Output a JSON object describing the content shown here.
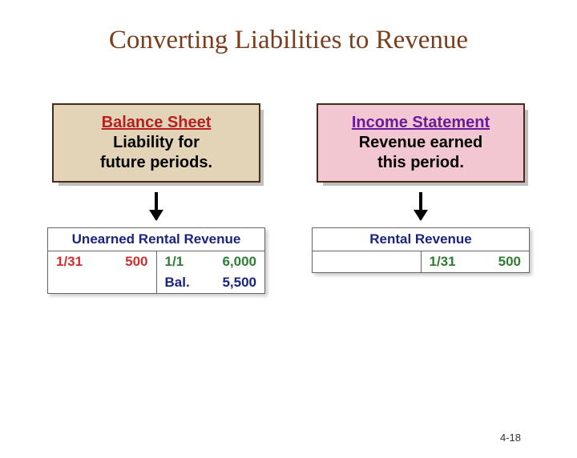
{
  "title": "Converting Liabilities to Revenue",
  "pageNumber": "4-18",
  "left": {
    "boxTitle": "Balance Sheet",
    "boxSub1": "Liability for",
    "boxSub2": "future periods.",
    "account": {
      "title": "Unearned Rental Revenue",
      "rows": [
        {
          "debitDate": "1/31",
          "debitAmt": "500",
          "creditDate": "1/1",
          "creditAmt": "6,000",
          "debitClass": "red",
          "creditClass": "green"
        },
        {
          "debitDate": "",
          "debitAmt": "",
          "creditDate": "Bal.",
          "creditAmt": "5,500",
          "debitClass": "",
          "creditClass": "navy"
        }
      ]
    }
  },
  "right": {
    "boxTitle": "Income Statement",
    "boxSub1": "Revenue earned",
    "boxSub2": "this period.",
    "account": {
      "title": "Rental Revenue",
      "rows": [
        {
          "debitDate": "",
          "debitAmt": "",
          "creditDate": "1/31",
          "creditAmt": "500",
          "debitClass": "",
          "creditClass": "green"
        }
      ]
    }
  }
}
